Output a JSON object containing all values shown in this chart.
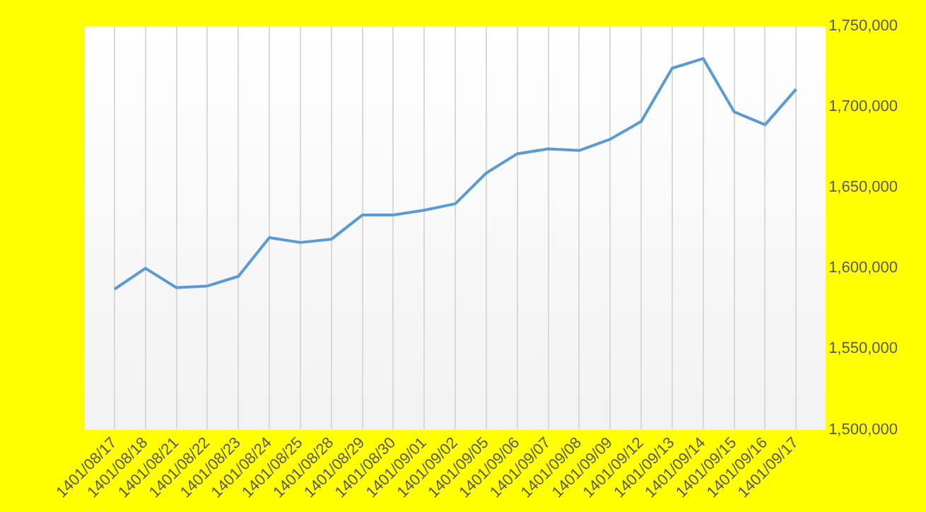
{
  "chart_data": {
    "type": "line",
    "categories": [
      "1401/08/17",
      "1401/08/18",
      "1401/08/21",
      "1401/08/22",
      "1401/08/23",
      "1401/08/24",
      "1401/08/25",
      "1401/08/28",
      "1401/08/29",
      "1401/08/30",
      "1401/09/01",
      "1401/09/02",
      "1401/09/05",
      "1401/09/06",
      "1401/09/07",
      "1401/09/08",
      "1401/09/09",
      "1401/09/12",
      "1401/09/13",
      "1401/09/14",
      "1401/09/15",
      "1401/09/16",
      "1401/09/17"
    ],
    "series": [
      {
        "color": "#5b9bd5",
        "values": [
          1587000,
          1600000,
          1588000,
          1589000,
          1595000,
          1619000,
          1616000,
          1618000,
          1633000,
          1633000,
          1636000,
          1640000,
          1659000,
          1671000,
          1674000,
          1673000,
          1680000,
          1691000,
          1724000,
          1730000,
          1697000,
          1689000,
          1711000
        ]
      }
    ],
    "ylim": [
      1500000,
      1750000
    ],
    "yticks": [
      {
        "value": 1500000,
        "label": "1,500,000"
      },
      {
        "value": 1550000,
        "label": "1,550,000"
      },
      {
        "value": 1600000,
        "label": "1,600,000"
      },
      {
        "value": 1650000,
        "label": "1,650,000"
      },
      {
        "value": 1700000,
        "label": "1,700,000"
      },
      {
        "value": 1750000,
        "label": "1,750,000"
      }
    ],
    "grid": "x",
    "legend": false,
    "marker": "none",
    "line_style": "solid"
  }
}
